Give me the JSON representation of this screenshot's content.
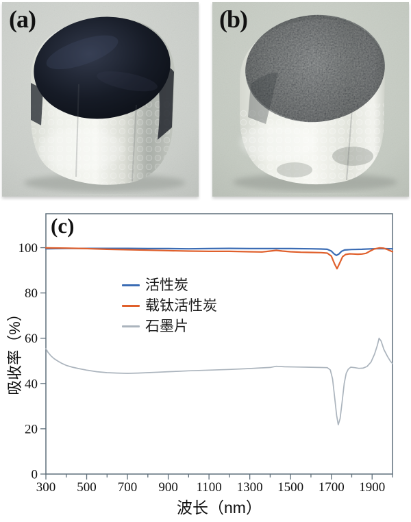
{
  "panels": {
    "a": {
      "label": "(a)"
    },
    "b": {
      "label": "(b)"
    },
    "c": {
      "label": "(c)"
    }
  },
  "chart_data": {
    "type": "line",
    "title": "",
    "xlabel": "波长（nm）",
    "ylabel": "吸收率（%）",
    "xlim": [
      300,
      2000
    ],
    "ylim": [
      0,
      115
    ],
    "x_minor_step": 100,
    "x_tick_labels": [
      300,
      500,
      700,
      900,
      1100,
      1300,
      1500,
      1700,
      1900
    ],
    "y_ticks": [
      0,
      20,
      40,
      60,
      80,
      100
    ],
    "grid": false,
    "legend_position": "inside-upper-left",
    "axis_color": "#5e6e7a",
    "series": [
      {
        "name": "活性炭",
        "color": "#3b6cb4",
        "width": 2.2,
        "points": [
          [
            300,
            99.5
          ],
          [
            400,
            99.7
          ],
          [
            500,
            99.7
          ],
          [
            600,
            99.7
          ],
          [
            700,
            99.7
          ],
          [
            800,
            99.6
          ],
          [
            900,
            99.6
          ],
          [
            1000,
            99.5
          ],
          [
            1100,
            99.6
          ],
          [
            1200,
            99.7
          ],
          [
            1300,
            99.6
          ],
          [
            1400,
            99.6
          ],
          [
            1500,
            99.6
          ],
          [
            1600,
            99.5
          ],
          [
            1650,
            99.4
          ],
          [
            1680,
            99.3
          ],
          [
            1700,
            98.5
          ],
          [
            1713,
            97.3
          ],
          [
            1725,
            96.6
          ],
          [
            1737,
            97.2
          ],
          [
            1750,
            98.4
          ],
          [
            1765,
            99.0
          ],
          [
            1800,
            99.2
          ],
          [
            1850,
            99.3
          ],
          [
            1900,
            99.5
          ],
          [
            1950,
            99.6
          ],
          [
            2000,
            99.5
          ]
        ]
      },
      {
        "name": "载钛活性炭",
        "color": "#e0602c",
        "width": 2.2,
        "points": [
          [
            300,
            99.9
          ],
          [
            400,
            99.8
          ],
          [
            500,
            99.6
          ],
          [
            600,
            99.3
          ],
          [
            700,
            99.1
          ],
          [
            800,
            98.9
          ],
          [
            900,
            98.7
          ],
          [
            1000,
            98.5
          ],
          [
            1100,
            98.4
          ],
          [
            1200,
            98.4
          ],
          [
            1300,
            98.2
          ],
          [
            1360,
            98.1
          ],
          [
            1400,
            98.5
          ],
          [
            1430,
            98.8
          ],
          [
            1460,
            98.5
          ],
          [
            1500,
            98.2
          ],
          [
            1550,
            98.0
          ],
          [
            1600,
            97.9
          ],
          [
            1650,
            97.8
          ],
          [
            1680,
            97.6
          ],
          [
            1700,
            96.3
          ],
          [
            1715,
            93.0
          ],
          [
            1728,
            90.7
          ],
          [
            1741,
            93.2
          ],
          [
            1755,
            96.0
          ],
          [
            1770,
            97.0
          ],
          [
            1790,
            97.3
          ],
          [
            1810,
            97.2
          ],
          [
            1830,
            97.1
          ],
          [
            1850,
            97.2
          ],
          [
            1870,
            97.5
          ],
          [
            1890,
            98.5
          ],
          [
            1910,
            99.4
          ],
          [
            1935,
            99.9
          ],
          [
            1955,
            99.8
          ],
          [
            1975,
            99.2
          ],
          [
            2000,
            98.2
          ]
        ]
      },
      {
        "name": "石墨片",
        "color": "#abb4bd",
        "width": 1.7,
        "points": [
          [
            300,
            55.4
          ],
          [
            310,
            53.8
          ],
          [
            325,
            52.2
          ],
          [
            340,
            51.0
          ],
          [
            360,
            49.8
          ],
          [
            380,
            48.8
          ],
          [
            400,
            48.0
          ],
          [
            430,
            47.2
          ],
          [
            460,
            46.6
          ],
          [
            500,
            45.9
          ],
          [
            550,
            45.2
          ],
          [
            600,
            44.8
          ],
          [
            650,
            44.6
          ],
          [
            700,
            44.5
          ],
          [
            750,
            44.6
          ],
          [
            800,
            44.8
          ],
          [
            850,
            45.0
          ],
          [
            900,
            45.2
          ],
          [
            950,
            45.4
          ],
          [
            1000,
            45.6
          ],
          [
            1100,
            45.9
          ],
          [
            1200,
            46.2
          ],
          [
            1300,
            46.6
          ],
          [
            1360,
            46.9
          ],
          [
            1400,
            47.1
          ],
          [
            1430,
            47.6
          ],
          [
            1470,
            47.4
          ],
          [
            1520,
            47.3
          ],
          [
            1580,
            47.2
          ],
          [
            1640,
            47.1
          ],
          [
            1680,
            47.0
          ],
          [
            1695,
            46.0
          ],
          [
            1706,
            42.0
          ],
          [
            1716,
            34.0
          ],
          [
            1726,
            26.0
          ],
          [
            1734,
            21.8
          ],
          [
            1743,
            24.5
          ],
          [
            1753,
            32.0
          ],
          [
            1763,
            40.0
          ],
          [
            1773,
            44.5
          ],
          [
            1783,
            46.3
          ],
          [
            1795,
            47.2
          ],
          [
            1815,
            47.0
          ],
          [
            1835,
            46.7
          ],
          [
            1855,
            46.8
          ],
          [
            1875,
            47.5
          ],
          [
            1895,
            49.5
          ],
          [
            1912,
            53.0
          ],
          [
            1926,
            57.0
          ],
          [
            1934,
            60.0
          ],
          [
            1944,
            58.8
          ],
          [
            1958,
            55.0
          ],
          [
            1975,
            52.0
          ],
          [
            1990,
            49.8
          ],
          [
            2000,
            48.8
          ]
        ]
      }
    ]
  }
}
